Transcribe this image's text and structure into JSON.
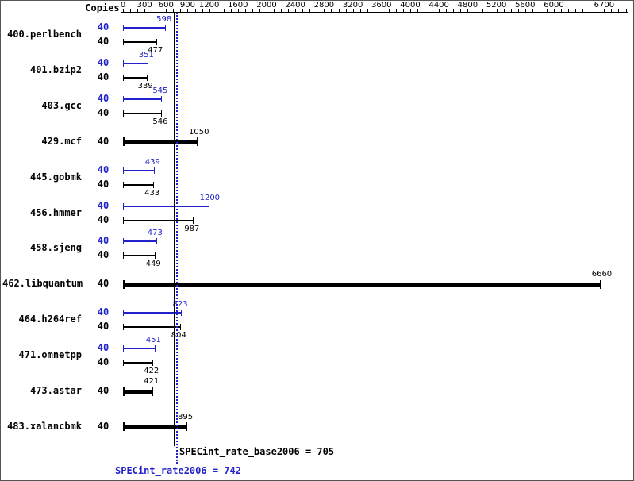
{
  "header": {
    "copies_label": "Copies"
  },
  "axis": {
    "labels": [
      0,
      300,
      600,
      900,
      1200,
      1600,
      2000,
      2400,
      2800,
      3200,
      3600,
      4000,
      4400,
      4800,
      5200,
      5600,
      6000,
      6700
    ],
    "minor_step": 100,
    "tick_max": 7000,
    "max": 6700
  },
  "chart_data": {
    "type": "bar",
    "orientation": "horizontal",
    "title": "",
    "xlabel": "",
    "ylabel": "Copies",
    "xlim": [
      0,
      6700
    ],
    "grid": false,
    "colors": {
      "peak": "#2222cc",
      "base": "#000000"
    },
    "benchmarks": [
      {
        "name": "400.perlbench",
        "copies": 40,
        "peak": 598,
        "base": 477
      },
      {
        "name": "401.bzip2",
        "copies": 40,
        "peak": 351,
        "base": 339
      },
      {
        "name": "403.gcc",
        "copies": 40,
        "peak": 545,
        "base": 546
      },
      {
        "name": "429.mcf",
        "copies": 40,
        "peak": null,
        "base": 1050
      },
      {
        "name": "445.gobmk",
        "copies": 40,
        "peak": 439,
        "base": 433
      },
      {
        "name": "456.hmmer",
        "copies": 40,
        "peak": 1200,
        "base": 987
      },
      {
        "name": "458.sjeng",
        "copies": 40,
        "peak": 473,
        "base": 449
      },
      {
        "name": "462.libquantum",
        "copies": 40,
        "peak": null,
        "base": 6660
      },
      {
        "name": "464.h264ref",
        "copies": 40,
        "peak": 823,
        "base": 804
      },
      {
        "name": "471.omnetpp",
        "copies": 40,
        "peak": 451,
        "base": 422
      },
      {
        "name": "473.astar",
        "copies": 40,
        "peak": null,
        "base": 421
      },
      {
        "name": "483.xalancbmk",
        "copies": 40,
        "peak": null,
        "base": 895
      }
    ],
    "summary": {
      "base_label": "SPECint_rate_base2006 = 705",
      "base_value": 705,
      "peak_label": "SPECint_rate2006 = 742",
      "peak_value": 742
    }
  }
}
